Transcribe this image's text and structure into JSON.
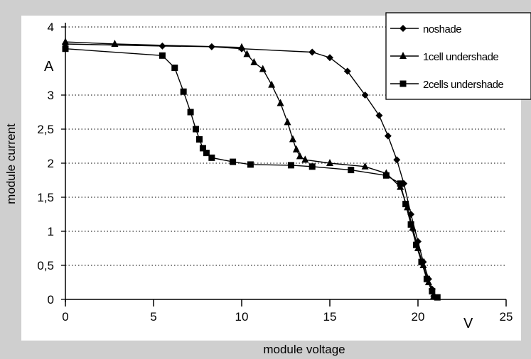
{
  "chart_data": {
    "type": "line",
    "xlabel": "module voltage",
    "ylabel": "module current",
    "x_unit": "V",
    "y_unit": "A",
    "xlim": [
      0,
      25
    ],
    "ylim": [
      0,
      4
    ],
    "x_ticks": [
      0,
      5,
      10,
      15,
      20,
      25
    ],
    "x_tick_labels": [
      "0",
      "5",
      "10",
      "15",
      "20",
      "25"
    ],
    "y_ticks": [
      0,
      0.5,
      1,
      1.5,
      2,
      2.5,
      3,
      4
    ],
    "y_tick_labels": [
      "0",
      "0,5",
      "1",
      "1,5",
      "2",
      "2,5",
      "3",
      "4"
    ],
    "grid": "horizontal-dotted",
    "legend_position": "top-right",
    "series": [
      {
        "name": "noshade",
        "marker": "diamond",
        "x": [
          0,
          5.5,
          8.3,
          10.0,
          14.0,
          15.0,
          16.0,
          17.0,
          17.8,
          18.3,
          18.8,
          19.2,
          19.6,
          20.0,
          20.3,
          20.6,
          20.8,
          20.9
        ],
        "y": [
          3.75,
          3.72,
          3.71,
          3.68,
          3.63,
          3.55,
          3.35,
          3.0,
          2.7,
          2.4,
          2.05,
          1.7,
          1.25,
          0.85,
          0.55,
          0.3,
          0.15,
          0.05
        ]
      },
      {
        "name": "1cell undershade",
        "marker": "triangle",
        "x": [
          0,
          2.8,
          10.0,
          10.3,
          10.7,
          11.2,
          11.7,
          12.2,
          12.6,
          12.9,
          13.1,
          13.3,
          13.6,
          15.0,
          17.0,
          18.2,
          19.0,
          19.4,
          19.7,
          20.0,
          20.3,
          20.6,
          20.9
        ],
        "y": [
          3.78,
          3.75,
          3.7,
          3.6,
          3.48,
          3.38,
          3.15,
          2.88,
          2.6,
          2.35,
          2.2,
          2.1,
          2.05,
          2.0,
          1.95,
          1.85,
          1.65,
          1.35,
          1.05,
          0.75,
          0.5,
          0.25,
          0.05
        ]
      },
      {
        "name": "2cells undershade",
        "marker": "square",
        "x": [
          0,
          5.5,
          6.2,
          6.7,
          7.1,
          7.4,
          7.6,
          7.8,
          8.0,
          8.3,
          9.5,
          10.5,
          12.8,
          14.0,
          16.2,
          18.2,
          19.0,
          19.3,
          19.6,
          19.9,
          20.2,
          20.5,
          20.8,
          21.1
        ],
        "y": [
          3.68,
          3.58,
          3.4,
          3.05,
          2.75,
          2.5,
          2.35,
          2.22,
          2.15,
          2.08,
          2.02,
          1.98,
          1.97,
          1.95,
          1.9,
          1.82,
          1.7,
          1.4,
          1.1,
          0.8,
          0.55,
          0.3,
          0.12,
          0.03
        ]
      }
    ]
  }
}
